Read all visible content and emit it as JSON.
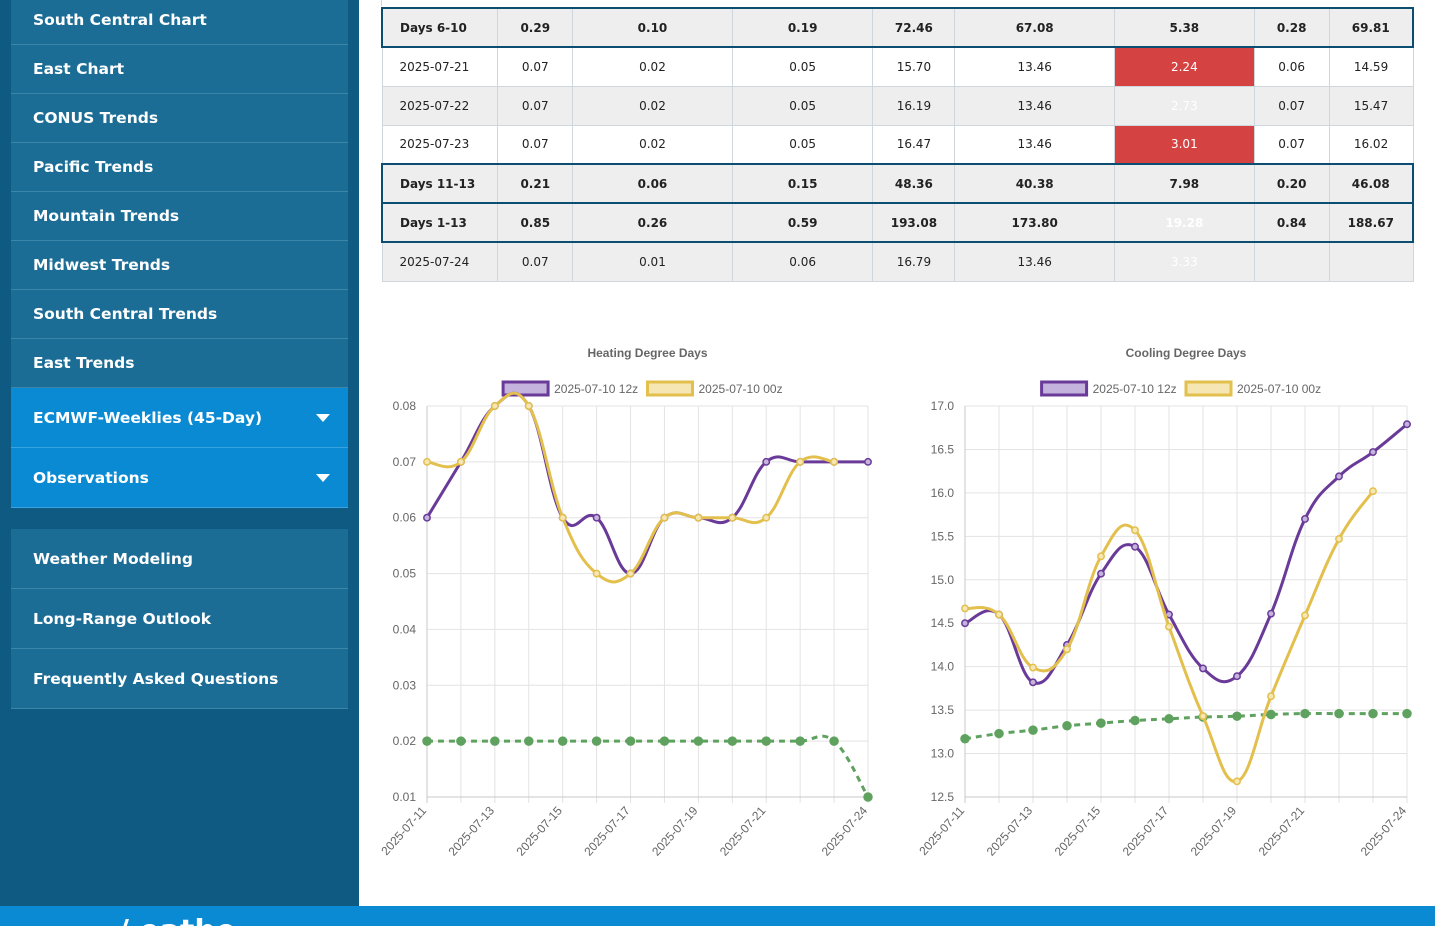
{
  "sidebar": {
    "group1": [
      "South Central Chart",
      "East Chart",
      "CONUS Trends",
      "Pacific Trends",
      "Mountain Trends",
      "Midwest Trends",
      "South Central Trends",
      "East Trends"
    ],
    "group1_accent": [
      "ECMWF-Weeklies (45-Day)",
      "Observations"
    ],
    "group2": [
      "Weather Modeling",
      "Long-Range Outlook",
      "Frequently Asked Questions"
    ]
  },
  "table": {
    "rows": [
      {
        "kind": "sum",
        "cells": [
          "Days 6-10",
          "0.29",
          "0.10",
          "0.19",
          "72.46",
          "67.08",
          "5.38",
          "0.28",
          "69.81"
        ],
        "hot": false
      },
      {
        "kind": "plain",
        "cells": [
          "2025-07-21",
          "0.07",
          "0.02",
          "0.05",
          "15.70",
          "13.46",
          "2.24",
          "0.06",
          "14.59"
        ],
        "hot": true
      },
      {
        "kind": "alt",
        "cells": [
          "2025-07-22",
          "0.07",
          "0.02",
          "0.05",
          "16.19",
          "13.46",
          "2.73",
          "0.07",
          "15.47"
        ],
        "hot": true
      },
      {
        "kind": "plain",
        "cells": [
          "2025-07-23",
          "0.07",
          "0.02",
          "0.05",
          "16.47",
          "13.46",
          "3.01",
          "0.07",
          "16.02"
        ],
        "hot": true
      },
      {
        "kind": "sum",
        "cells": [
          "Days 11-13",
          "0.21",
          "0.06",
          "0.15",
          "48.36",
          "40.38",
          "7.98",
          "0.20",
          "46.08"
        ],
        "hot": false
      },
      {
        "kind": "sum",
        "cells": [
          "Days 1-13",
          "0.85",
          "0.26",
          "0.59",
          "193.08",
          "173.80",
          "19.28",
          "0.84",
          "188.67"
        ],
        "hot": true
      },
      {
        "kind": "alt",
        "cells": [
          "2025-07-24",
          "0.07",
          "0.01",
          "0.06",
          "16.79",
          "13.46",
          "3.33",
          "",
          ""
        ],
        "hot": true
      }
    ],
    "hot_color": "#d54242"
  },
  "chart_data": [
    {
      "type": "line",
      "title": "Heating Degree Days",
      "x": [
        "2025-07-11",
        "2025-07-12",
        "2025-07-13",
        "2025-07-14",
        "2025-07-15",
        "2025-07-16",
        "2025-07-17",
        "2025-07-18",
        "2025-07-19",
        "2025-07-20",
        "2025-07-21",
        "2025-07-22",
        "2025-07-23",
        "2025-07-24"
      ],
      "x_tick_labels": [
        "2025-07-11",
        "2025-07-13",
        "2025-07-15",
        "2025-07-17",
        "2025-07-19",
        "2025-07-21",
        "2025-07-24"
      ],
      "ylim": [
        0.01,
        0.08
      ],
      "y_ticks": [
        0.01,
        0.02,
        0.03,
        0.04,
        0.05,
        0.06,
        0.07,
        0.08
      ],
      "y_decimals": 2,
      "grid": true,
      "legend": "top",
      "series": [
        {
          "name": "2025-07-10 12z",
          "color": "#6a3a99",
          "fill": "#c4b3dd",
          "style": "solid",
          "values": [
            0.06,
            0.07,
            0.08,
            0.08,
            0.06,
            0.06,
            0.05,
            0.06,
            0.06,
            0.06,
            0.07,
            0.07,
            0.07,
            0.07
          ]
        },
        {
          "name": "2025-07-10 00z",
          "color": "#e3c04d",
          "fill": "#f5e6b3",
          "style": "solid",
          "values": [
            0.07,
            0.07,
            0.08,
            0.08,
            0.06,
            0.05,
            0.05,
            0.06,
            0.06,
            0.06,
            0.06,
            0.07,
            0.07,
            null
          ]
        },
        {
          "name": "",
          "color": "#5fa25f",
          "style": "dashed",
          "values": [
            0.02,
            0.02,
            0.02,
            0.02,
            0.02,
            0.02,
            0.02,
            0.02,
            0.02,
            0.02,
            0.02,
            0.02,
            0.02,
            0.01
          ]
        }
      ]
    },
    {
      "type": "line",
      "title": "Cooling Degree Days",
      "x": [
        "2025-07-11",
        "2025-07-12",
        "2025-07-13",
        "2025-07-14",
        "2025-07-15",
        "2025-07-16",
        "2025-07-17",
        "2025-07-18",
        "2025-07-19",
        "2025-07-20",
        "2025-07-21",
        "2025-07-22",
        "2025-07-23",
        "2025-07-24"
      ],
      "x_tick_labels": [
        "2025-07-11",
        "2025-07-13",
        "2025-07-15",
        "2025-07-17",
        "2025-07-19",
        "2025-07-21",
        "2025-07-24"
      ],
      "ylim": [
        12.5,
        17.0
      ],
      "y_ticks": [
        12.5,
        13.0,
        13.5,
        14.0,
        14.5,
        15.0,
        15.5,
        16.0,
        16.5,
        17.0
      ],
      "y_decimals": 1,
      "grid": true,
      "legend": "top",
      "series": [
        {
          "name": "2025-07-10 12z",
          "color": "#6a3a99",
          "fill": "#c4b3dd",
          "style": "solid",
          "values": [
            14.5,
            14.6,
            13.82,
            14.25,
            15.07,
            15.38,
            14.6,
            13.98,
            13.89,
            14.61,
            15.7,
            16.19,
            16.47,
            16.79
          ]
        },
        {
          "name": "2025-07-10 00z",
          "color": "#e3c04d",
          "fill": "#f5e6b3",
          "style": "solid",
          "values": [
            14.67,
            14.6,
            13.99,
            14.2,
            15.27,
            15.57,
            14.46,
            13.43,
            12.68,
            13.66,
            14.59,
            15.47,
            16.02,
            null
          ]
        },
        {
          "name": "",
          "color": "#5fa25f",
          "style": "dashed",
          "values": [
            13.17,
            13.23,
            13.27,
            13.32,
            13.35,
            13.38,
            13.4,
            13.42,
            13.43,
            13.45,
            13.46,
            13.46,
            13.46,
            13.46
          ]
        }
      ]
    }
  ],
  "footer": {
    "text": "/ eathe"
  }
}
